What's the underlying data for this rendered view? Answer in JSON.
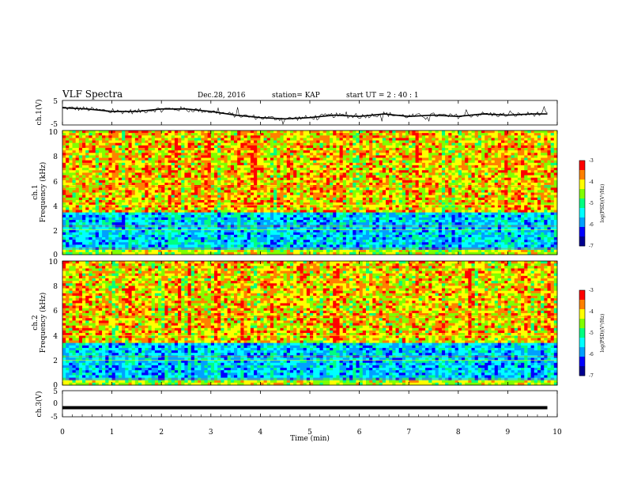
{
  "header": {
    "title": "VLF Spectra",
    "date": "Dec.28, 2016",
    "station": "station= KAP",
    "start": "start  UT =   2 : 40 : 1"
  },
  "colors": {
    "colormap": [
      "#000090",
      "#0000ff",
      "#00a0ff",
      "#00ffff",
      "#00ff80",
      "#80ff00",
      "#ffff00",
      "#ff8000",
      "#ff0000",
      "#ffffff"
    ],
    "trace": "#000000"
  },
  "chart_data": [
    {
      "type": "line",
      "name": "ch1-waveform",
      "ylabel": "ch.1(V)",
      "ylim": [
        -5,
        5
      ],
      "yticks": [
        "5",
        "-5"
      ],
      "x": [
        0,
        0.5,
        1,
        1.5,
        2,
        2.5,
        3,
        3.5,
        4,
        4.5,
        5,
        5.5,
        6,
        6.5,
        7,
        7.5,
        8,
        8.5,
        9,
        9.5,
        9.8
      ],
      "values": [
        2,
        1.5,
        0.5,
        0.5,
        1.5,
        1.5,
        0.5,
        -1,
        -2,
        -2.5,
        -2,
        -1,
        -1.5,
        -0.5,
        -1.5,
        -1,
        -1.5,
        -0.5,
        -1,
        -0.5,
        -0.5
      ]
    },
    {
      "type": "heatmap",
      "name": "ch1-spectrogram",
      "ylabel_line1": "ch.1",
      "ylabel_line2": "Frequency (kHz)",
      "ylim": [
        0,
        10
      ],
      "yticks": [
        "0",
        "2",
        "4",
        "6",
        "8",
        "10"
      ],
      "colorbar_label": "log(PSD)(V²/Hz)",
      "colorbar_range": [
        -7,
        -3
      ],
      "colorbar_ticks": [
        "-3",
        "-4",
        "-5",
        "-6",
        "-7"
      ]
    },
    {
      "type": "heatmap",
      "name": "ch2-spectrogram",
      "ylabel_line1": "ch.2",
      "ylabel_line2": "Frequency (kHz)",
      "ylim": [
        0,
        10
      ],
      "yticks": [
        "0",
        "2",
        "4",
        "6",
        "8",
        "10"
      ],
      "colorbar_label": "log(PSD)(V²/Hz)",
      "colorbar_range": [
        -7,
        -3
      ],
      "colorbar_ticks": [
        "-3",
        "-4",
        "-5",
        "-6",
        "-7"
      ]
    },
    {
      "type": "line",
      "name": "ch3-waveform",
      "ylabel": "ch.3(V)",
      "ylim": [
        -5,
        5
      ],
      "yticks": [
        "5",
        "0",
        "-5"
      ],
      "x": [
        0,
        9.8
      ],
      "values": [
        -1.5,
        -1.5
      ]
    }
  ],
  "xaxis": {
    "label": "Time (min)",
    "xlim": [
      0,
      10
    ],
    "ticks": [
      "0",
      "1",
      "2",
      "3",
      "4",
      "5",
      "6",
      "7",
      "8",
      "9",
      "10"
    ]
  }
}
